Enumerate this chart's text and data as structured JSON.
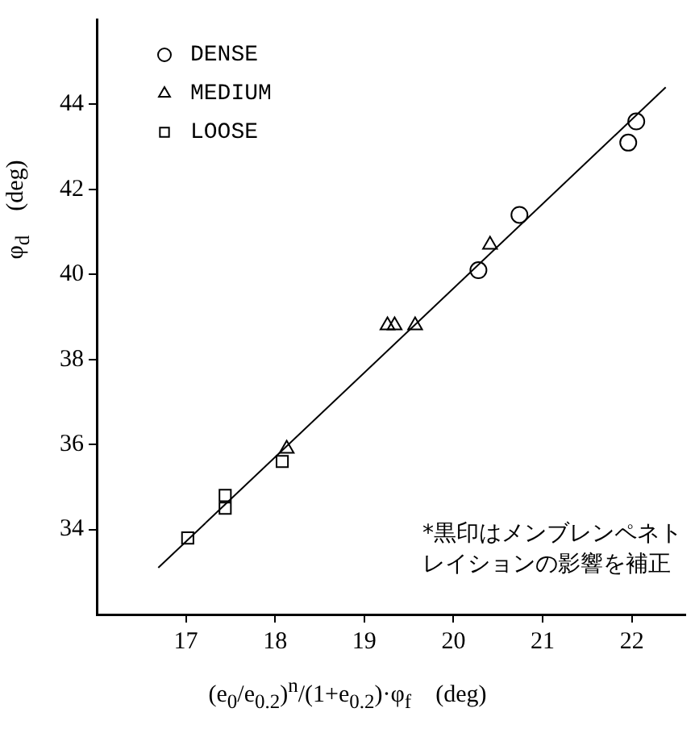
{
  "chart_data": {
    "type": "scatter",
    "xlabel": "(e$_{0}$/e$_{0.2}$)$^{n}$/(1+e$_{0.2}$)·φ$_{f}$    (deg)",
    "ylabel": "φ$_{d}$    (deg)",
    "xlim": [
      16,
      22.6
    ],
    "xticks": [
      17,
      18,
      19,
      20,
      21,
      22
    ],
    "ylim": [
      32,
      46
    ],
    "yticks": [
      34,
      36,
      38,
      40,
      42,
      44
    ],
    "grid": false,
    "legend": "top left",
    "annotations": [
      "*黒印はメンブレンペネトレイションの影響を補正"
    ],
    "series": [
      {
        "name": "DENSE",
        "color": "#000000",
        "marker": "circle",
        "x": [
          22.05,
          21.96,
          20.74,
          20.28
        ],
        "values": [
          43.6,
          43.1,
          41.4,
          40.1
        ]
      },
      {
        "name": "MEDIUM",
        "color": "#000000",
        "marker": "triangle",
        "x": [
          20.41,
          19.26,
          19.34,
          19.57,
          18.13
        ],
        "values": [
          40.7,
          38.8,
          38.8,
          38.8,
          35.9
        ]
      },
      {
        "name": "LOOSE",
        "color": "#000000",
        "marker": "square",
        "x": [
          18.08,
          17.44,
          17.44,
          17.02
        ],
        "values": [
          35.6,
          34.8,
          34.5,
          33.8
        ]
      },
      {
        "type": "line",
        "color": "#000000",
        "marker": "none",
        "x": [
          16.69,
          22.38
        ],
        "values": [
          33.1,
          44.4
        ]
      }
    ]
  }
}
